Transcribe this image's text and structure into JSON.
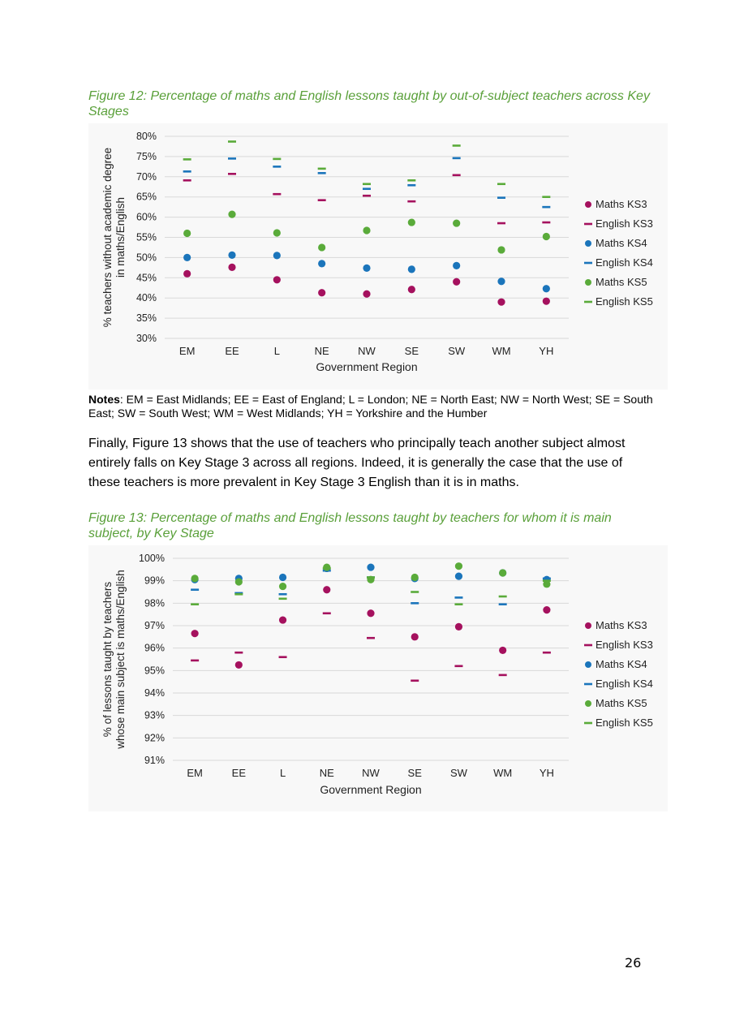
{
  "figure12": {
    "caption": "Figure 12: Percentage of maths and English lessons taught by out-of-subject teachers across Key Stages"
  },
  "notes": {
    "label": "Notes",
    "text": ": EM = East Midlands; EE = East of England; L = London; NE = North East; NW = North West; SE = South East; SW = South West; WM = West Midlands; YH = Yorkshire and the Humber"
  },
  "paragraph": "Finally, Figure 13 shows that the use of teachers who principally teach another subject almost entirely falls on Key Stage 3 across all regions. Indeed, it is generally the case that the use of these teachers is more prevalent in Key Stage 3 English than it is in maths.",
  "figure13": {
    "caption": "Figure 13: Percentage of maths and English lessons taught by teachers for whom it is main subject, by Key Stage"
  },
  "page_number": "26",
  "colors": {
    "maths_ks3": "#a5115e",
    "english_ks3": "#a5115e",
    "maths_ks4": "#1b75bb",
    "english_ks4": "#1b75bb",
    "maths_ks5": "#5aab3a",
    "english_ks5": "#5aab3a",
    "caption": "#5aa03a"
  },
  "chart_data": [
    {
      "type": "scatter",
      "xlabel": "Government Region",
      "ylabel": "% teachers without academic degree in maths/English",
      "ylabel_lines": [
        "% teachers without academic degree",
        "in maths/English"
      ],
      "categories": [
        "EM",
        "EE",
        "L",
        "NE",
        "NW",
        "SE",
        "SW",
        "WM",
        "YH"
      ],
      "ylim": [
        30,
        80
      ],
      "yticks": [
        30,
        35,
        40,
        45,
        50,
        55,
        60,
        65,
        70,
        75,
        80
      ],
      "ytick_labels": [
        "30%",
        "35%",
        "40%",
        "45%",
        "50%",
        "55%",
        "60%",
        "65%",
        "70%",
        "75%",
        "80%"
      ],
      "grid": true,
      "legend": "right",
      "series": [
        {
          "name": "Maths KS3",
          "marker": "circle",
          "color": "#a5115e",
          "values": [
            46,
            47.6,
            44.5,
            41.3,
            41,
            42.1,
            44,
            39,
            39.2
          ]
        },
        {
          "name": "English KS3",
          "marker": "dash",
          "color": "#a5115e",
          "values": [
            69.1,
            70.7,
            65.7,
            64.2,
            65.3,
            63.9,
            70.4,
            58.5,
            58.7
          ]
        },
        {
          "name": "Maths KS4",
          "marker": "circle",
          "color": "#1b75bb",
          "values": [
            50,
            50.6,
            50.5,
            48.5,
            47.4,
            47.1,
            48,
            44.1,
            42.3
          ]
        },
        {
          "name": "English KS4",
          "marker": "dash",
          "color": "#1b75bb",
          "values": [
            71.3,
            74.5,
            72.5,
            70.9,
            67,
            67.9,
            74.6,
            64.8,
            62.5
          ]
        },
        {
          "name": "Maths KS5",
          "marker": "circle",
          "color": "#5aab3a",
          "values": [
            56,
            60.7,
            56.1,
            52.5,
            56.7,
            58.7,
            58.5,
            51.9,
            55.2
          ]
        },
        {
          "name": "English KS5",
          "marker": "dash",
          "color": "#5aab3a",
          "values": [
            74.3,
            78.7,
            74.4,
            72,
            68.2,
            69.1,
            77.7,
            68.2,
            65
          ]
        }
      ]
    },
    {
      "type": "scatter",
      "xlabel": "Government Region",
      "ylabel": "% of lessons taught by teachers whose main subject is maths/English",
      "ylabel_lines": [
        "% of lessons taught by teachers",
        "whose main subject is maths/English"
      ],
      "categories": [
        "EM",
        "EE",
        "L",
        "NE",
        "NW",
        "SE",
        "SW",
        "WM",
        "YH"
      ],
      "ylim": [
        91,
        100
      ],
      "yticks": [
        91,
        92,
        93,
        94,
        95,
        96,
        97,
        98,
        99,
        100
      ],
      "ytick_labels": [
        "91%",
        "92%",
        "93%",
        "94%",
        "95%",
        "96%",
        "97%",
        "98%",
        "99%",
        "100%"
      ],
      "grid": true,
      "legend": "right",
      "series": [
        {
          "name": "Maths KS3",
          "marker": "circle",
          "color": "#a5115e",
          "values": [
            96.65,
            95.25,
            97.25,
            98.6,
            97.55,
            96.5,
            96.95,
            95.9,
            97.7
          ]
        },
        {
          "name": "English KS3",
          "marker": "dash",
          "color": "#a5115e",
          "values": [
            95.45,
            95.8,
            95.6,
            97.55,
            96.45,
            94.55,
            95.2,
            94.8,
            95.8
          ]
        },
        {
          "name": "Maths KS4",
          "marker": "circle",
          "color": "#1b75bb",
          "values": [
            99.05,
            99.1,
            99.15,
            99.55,
            99.6,
            99.1,
            99.2,
            99.35,
            99.05
          ]
        },
        {
          "name": "English KS4",
          "marker": "dash",
          "color": "#1b75bb",
          "values": [
            98.6,
            98.45,
            98.4,
            99.45,
            99.15,
            98,
            98.25,
            97.95,
            99.1
          ]
        },
        {
          "name": "Maths KS5",
          "marker": "circle",
          "color": "#5aab3a",
          "values": [
            99.1,
            98.95,
            98.75,
            99.6,
            99.05,
            99.15,
            99.65,
            99.35,
            98.85
          ]
        },
        {
          "name": "English KS5",
          "marker": "dash",
          "color": "#5aab3a",
          "values": [
            97.95,
            98.4,
            98.2,
            99.55,
            99.15,
            98.5,
            97.95,
            98.3,
            99
          ]
        }
      ]
    }
  ]
}
